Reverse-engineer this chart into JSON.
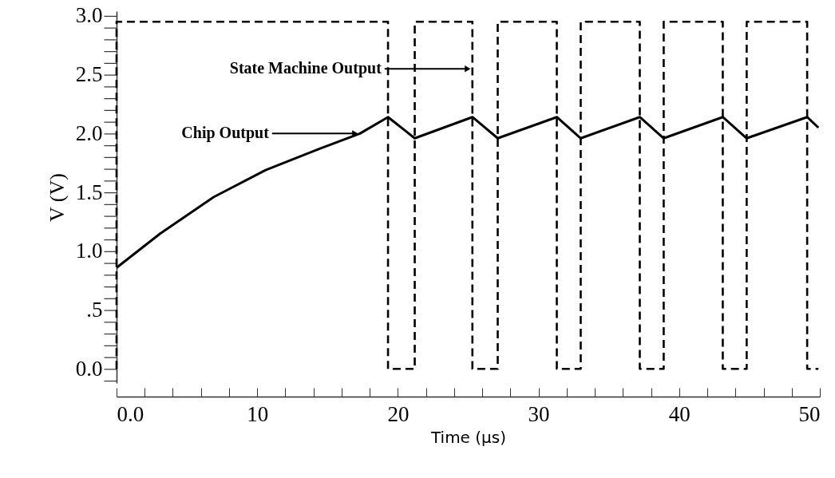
{
  "chart_data": {
    "type": "line",
    "xlabel": "Time (µs)",
    "ylabel": "V (V)",
    "xlim": [
      0,
      50
    ],
    "xticks": [
      {
        "value": 0,
        "label": "0.0"
      },
      {
        "value": 2,
        "label": null
      },
      {
        "value": 4,
        "label": null
      },
      {
        "value": 6,
        "label": null
      },
      {
        "value": 8,
        "label": null
      },
      10,
      {
        "value": 12,
        "label": null
      },
      {
        "value": 14,
        "label": null
      },
      {
        "value": 16,
        "label": null
      },
      {
        "value": 18,
        "label": null
      },
      20,
      {
        "value": 22,
        "label": null
      },
      {
        "value": 24,
        "label": null
      },
      {
        "value": 26,
        "label": null
      },
      {
        "value": 28,
        "label": null
      },
      30,
      {
        "value": 32,
        "label": null
      },
      {
        "value": 34,
        "label": null
      },
      {
        "value": 36,
        "label": null
      },
      {
        "value": 38,
        "label": null
      },
      40,
      {
        "value": 42,
        "label": null
      },
      {
        "value": 44,
        "label": null
      },
      {
        "value": 46,
        "label": null
      },
      {
        "value": 48,
        "label": null
      },
      50
    ],
    "ylim": [
      -0.12,
      3.04
    ],
    "yticks": [
      {
        "value": -0.1,
        "label": null
      },
      {
        "value": 0,
        "label": "0.0"
      },
      {
        "value": 0.1,
        "label": null
      },
      {
        "value": 0.2,
        "label": null
      },
      {
        "value": 0.3,
        "label": null
      },
      {
        "value": 0.4,
        "label": null
      },
      {
        "value": 0.5,
        "label": ".5"
      },
      {
        "value": 0.6,
        "label": null
      },
      {
        "value": 0.7,
        "label": null
      },
      {
        "value": 0.8,
        "label": null
      },
      {
        "value": 0.9,
        "label": null
      },
      {
        "value": 1,
        "label": "1.0"
      },
      {
        "value": 1.1,
        "label": null
      },
      {
        "value": 1.2,
        "label": null
      },
      {
        "value": 1.3,
        "label": null
      },
      {
        "value": 1.4,
        "label": null
      },
      1.5,
      {
        "value": 1.6,
        "label": null
      },
      {
        "value": 1.7,
        "label": null
      },
      {
        "value": 1.8,
        "label": null
      },
      {
        "value": 1.9,
        "label": null
      },
      {
        "value": 2,
        "label": "2.0"
      },
      {
        "value": 2.1,
        "label": null
      },
      {
        "value": 2.2,
        "label": null
      },
      {
        "value": 2.3,
        "label": null
      },
      {
        "value": 2.4,
        "label": null
      },
      2.5,
      {
        "value": 2.6,
        "label": null
      },
      {
        "value": 2.7,
        "label": null
      },
      {
        "value": 2.8,
        "label": null
      },
      {
        "value": 2.9,
        "label": null
      },
      {
        "value": 3,
        "label": "3.0"
      }
    ],
    "grid": false,
    "series": [
      {
        "color": "#000000",
        "line_style": "dashed",
        "x": [
          0,
          0,
          19.3,
          19.3,
          21.2,
          21.2,
          25.3,
          25.3,
          27.1,
          27.1,
          31.3,
          31.3,
          33.0,
          33.0,
          37.2,
          37.2,
          38.9,
          38.9,
          43.1,
          43.1,
          44.8,
          44.8,
          49.1,
          49.1,
          49.9
        ],
        "values": [
          0,
          2.95,
          2.95,
          0,
          0,
          2.95,
          2.95,
          0,
          0,
          2.95,
          2.95,
          0,
          0,
          2.95,
          2.95,
          0,
          0,
          2.95,
          2.95,
          0,
          0,
          2.95,
          2.95,
          0,
          0
        ]
      },
      {
        "color": "#000000",
        "line_style": "solid",
        "x": [
          0,
          3.1,
          6.9,
          10.6,
          14.4,
          17.3,
          19.3,
          21.2,
          25.3,
          27.1,
          31.3,
          33.0,
          37.2,
          38.9,
          43.1,
          44.8,
          49.1,
          49.9
        ],
        "values": [
          0.86,
          1.15,
          1.46,
          1.69,
          1.87,
          2.0,
          2.14,
          1.96,
          2.14,
          1.96,
          2.14,
          1.96,
          2.14,
          1.96,
          2.14,
          1.96,
          2.14,
          2.05
        ]
      }
    ],
    "annotations": [
      {
        "text": "State Machine Output",
        "x": 25.3,
        "y": 2.55
      },
      {
        "text": "Chip Output",
        "x": 17.3,
        "y": 2.0
      }
    ]
  }
}
